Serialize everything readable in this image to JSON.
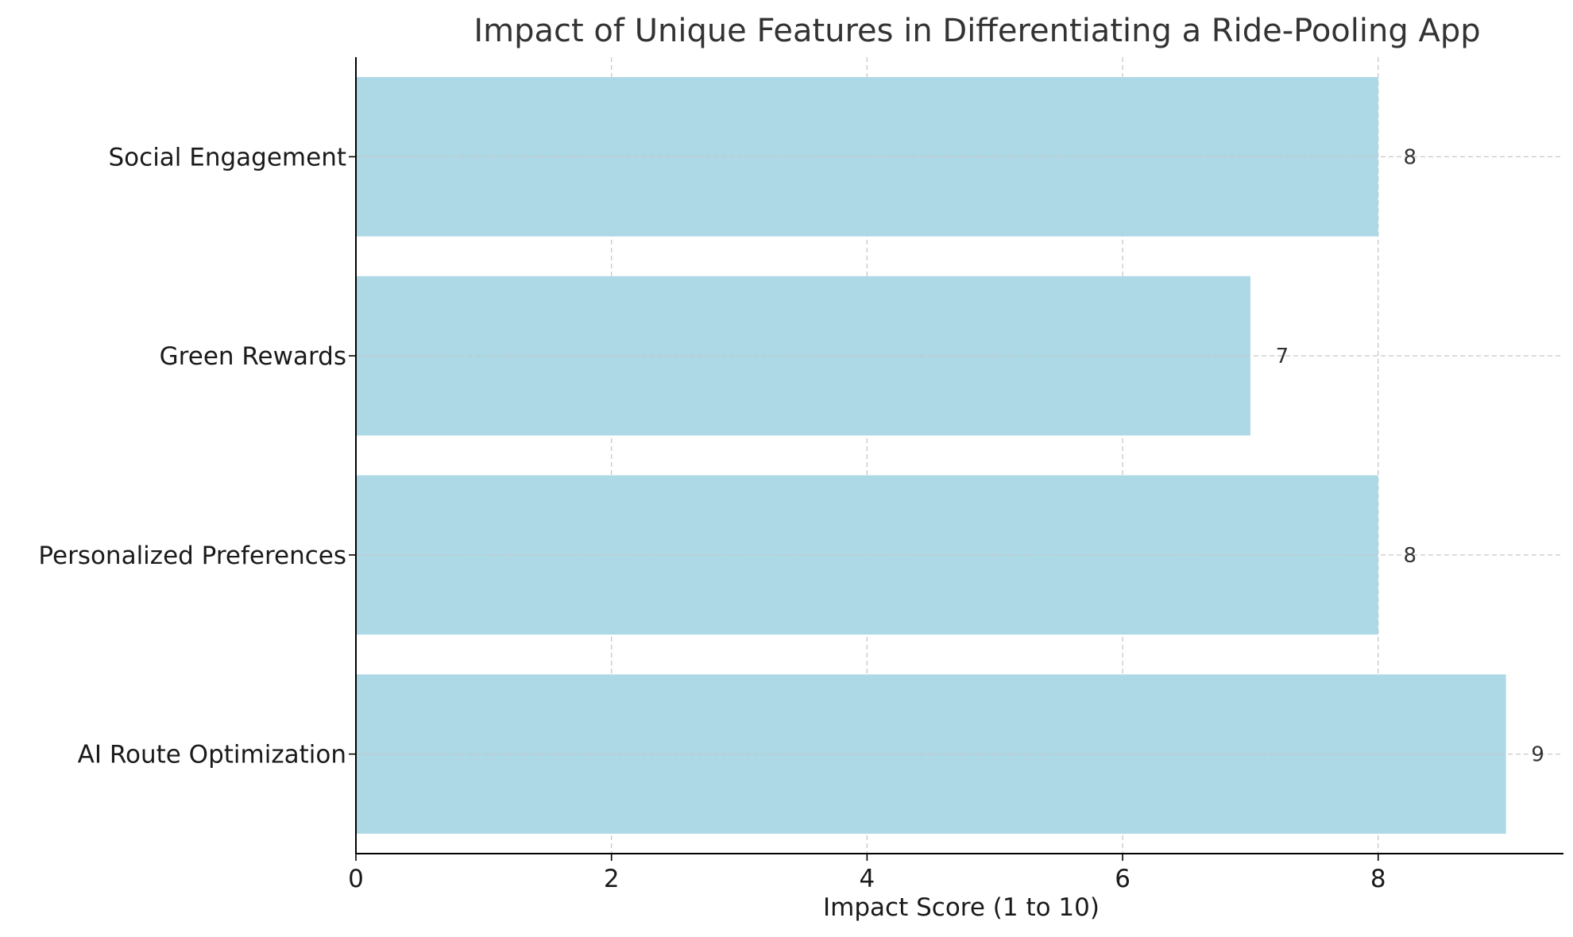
{
  "chart_data": {
    "type": "bar",
    "orientation": "horizontal",
    "title": "Impact of Unique Features in Differentiating a Ride-Pooling App",
    "xlabel": "Impact Score (1 to 10)",
    "ylabel": "",
    "categories": [
      "AI Route Optimization",
      "Personalized Preferences",
      "Green Rewards",
      "Social Engagement"
    ],
    "values": [
      9,
      8,
      7,
      8
    ],
    "data_labels": [
      "9",
      "8",
      "7",
      "8"
    ],
    "xlim": [
      0,
      9.45
    ],
    "xticks": [
      0,
      2,
      4,
      6,
      8
    ],
    "xtick_labels": [
      "0",
      "2",
      "4",
      "6",
      "8"
    ],
    "grid": true,
    "colors": {
      "bar": "#add8e6",
      "grid": "#c8c8c8",
      "axis": "#000000",
      "text": "#1a1a1a"
    }
  }
}
